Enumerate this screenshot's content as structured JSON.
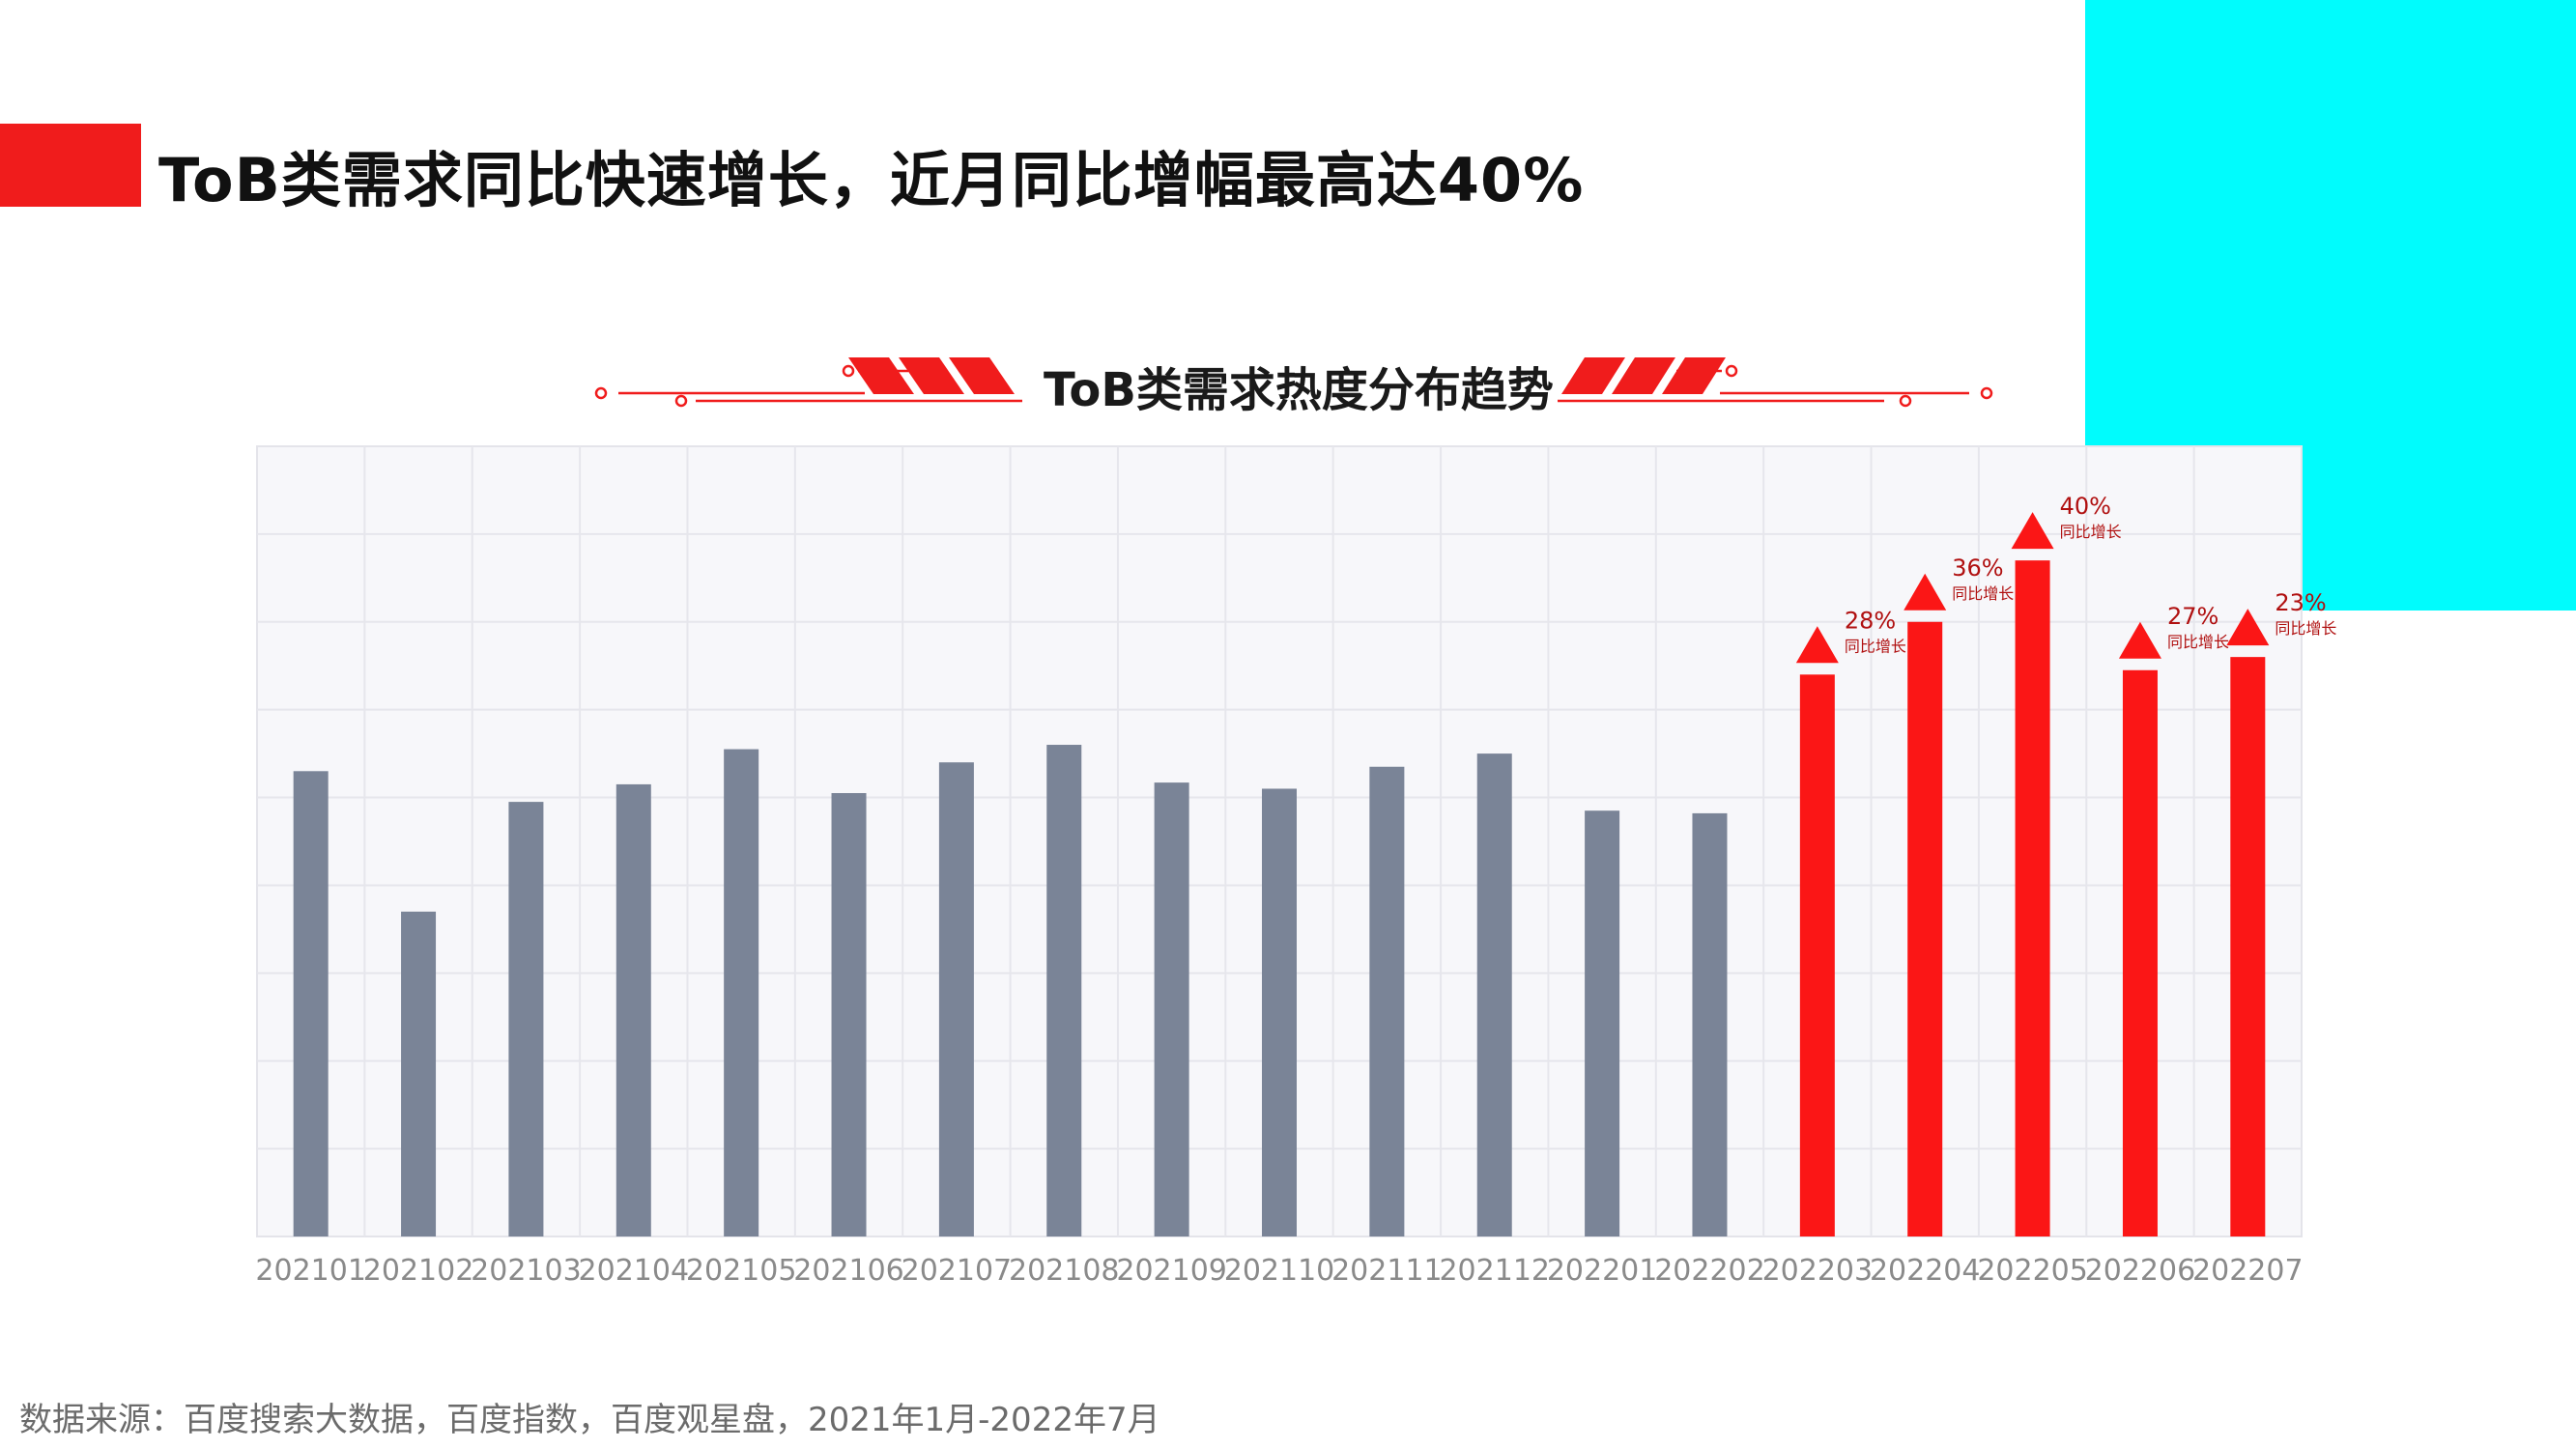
{
  "title": "ToB类需求同比快速增长，近月同比增幅最高达40%",
  "source": "数据来源：百度搜索大数据，百度指数，百度观星盘，2021年1月-2022年7月",
  "colors": {
    "accent_red": "#f01c1c",
    "cyan_block": "#00fcfd",
    "gray_bar": "#7a8497",
    "highlight_bar": "#fb1616",
    "label_red": "#b01010"
  },
  "chart_data": {
    "type": "bar",
    "title": "ToB类需求热度分布趋势",
    "categories": [
      "202101",
      "202102",
      "202103",
      "202104",
      "202105",
      "202106",
      "202107",
      "202108",
      "202109",
      "202110",
      "202111",
      "202112",
      "202201",
      "202202",
      "202203",
      "202204",
      "202205",
      "202206",
      "202207"
    ],
    "values": [
      53,
      37,
      49.5,
      51.5,
      55.5,
      50.5,
      54,
      56,
      51.7,
      51,
      53.5,
      55,
      48.5,
      48.2,
      64,
      70,
      77,
      64.5,
      66
    ],
    "highlight": [
      false,
      false,
      false,
      false,
      false,
      false,
      false,
      false,
      false,
      false,
      false,
      false,
      false,
      false,
      true,
      true,
      true,
      true,
      true
    ],
    "growth_labels": [
      {
        "category": "202203",
        "value": "28%",
        "note": "同比增长"
      },
      {
        "category": "202204",
        "value": "36%",
        "note": "同比增长"
      },
      {
        "category": "202205",
        "value": "40%",
        "note": "同比增长"
      },
      {
        "category": "202206",
        "value": "27%",
        "note": "同比增长"
      },
      {
        "category": "202207",
        "value": "23%",
        "note": "同比增长"
      }
    ],
    "ylim": [
      0,
      90
    ],
    "grid": true,
    "xlabel": "",
    "ylabel": ""
  }
}
